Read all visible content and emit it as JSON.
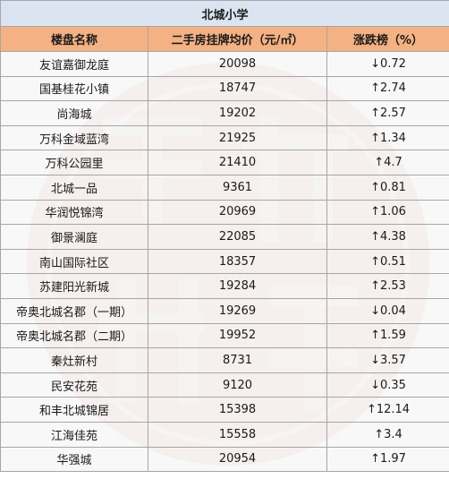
{
  "table": {
    "title": "北城小学",
    "headers": [
      "楼盘名称",
      "二手房挂牌均价（元/㎡）",
      "涨跌榜（%）"
    ],
    "rows": [
      {
        "name": "友谊嘉御龙庭",
        "price": "20098",
        "change": "↓0.72"
      },
      {
        "name": "国基桂花小镇",
        "price": "18747",
        "change": "↑2.74"
      },
      {
        "name": "尚海城",
        "price": "19202",
        "change": "↑2.57"
      },
      {
        "name": "万科金域蓝湾",
        "price": "21925",
        "change": "↑1.34"
      },
      {
        "name": "万科公园里",
        "price": "21410",
        "change": "↑4.7"
      },
      {
        "name": "北城一品",
        "price": "9361",
        "change": "↑0.81"
      },
      {
        "name": "华润悦锦湾",
        "price": "20969",
        "change": "↑1.06"
      },
      {
        "name": "御景澜庭",
        "price": "22085",
        "change": "↑4.38"
      },
      {
        "name": "南山国际社区",
        "price": "18357",
        "change": "↑0.51"
      },
      {
        "name": "苏建阳光新城",
        "price": "19284",
        "change": "↑2.53"
      },
      {
        "name": "帝奥北城名郡（一期）",
        "price": "19269",
        "change": "↓0.04"
      },
      {
        "name": "帝奥北城名郡（二期）",
        "price": "19952",
        "change": "↑1.59"
      },
      {
        "name": "秦灶新村",
        "price": "8731",
        "change": "↓3.57"
      },
      {
        "name": "民安花苑",
        "price": "9120",
        "change": "↓0.35"
      },
      {
        "name": "和丰北城锦居",
        "price": "15398",
        "change": "↑12.14"
      },
      {
        "name": "江海佳苑",
        "price": "15558",
        "change": "↑3.4"
      },
      {
        "name": "华强城",
        "price": "20954",
        "change": "↑1.97"
      }
    ]
  },
  "colors": {
    "title_bg": "#dbe5f1",
    "header_bg": "#f4b183",
    "row_bg": "#f2f2f2",
    "watermark": "#e9c8c0"
  },
  "watermark": {
    "icon": "seal-watermark-icon"
  }
}
